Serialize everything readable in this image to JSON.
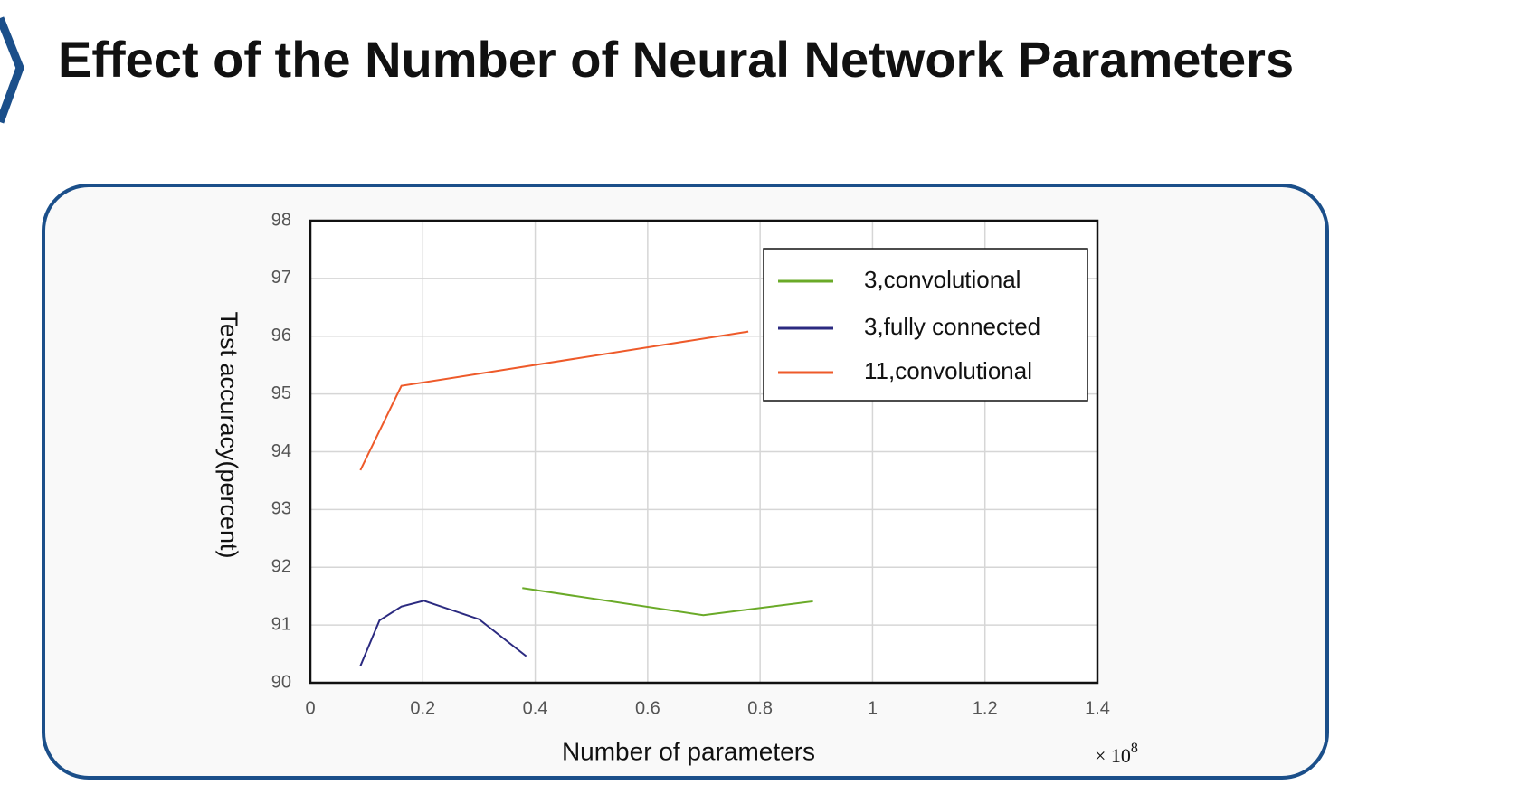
{
  "header": {
    "title": "Effect of the Number of Neural Network Parameters"
  },
  "chart_data": {
    "type": "line",
    "xlabel": "Number of parameters",
    "ylabel": "Test accuracy(percent)",
    "x_scale_label": "× 10",
    "x_scale_exponent": "8",
    "xlim": [
      0,
      1.4
    ],
    "xticks": [
      0,
      0.2,
      0.4,
      0.6,
      0.8,
      1,
      1.2,
      1.4
    ],
    "ylim": [
      90,
      98
    ],
    "yticks": [
      90,
      91,
      92,
      93,
      94,
      95,
      96,
      97,
      98
    ],
    "grid": true,
    "legend": "upper right",
    "series": [
      {
        "name": "3,convolutional",
        "color": "#6aaa28",
        "x": [
          0.377,
          0.699,
          0.894
        ],
        "values": [
          91.64,
          91.17,
          91.41
        ]
      },
      {
        "name": "3,fully connected",
        "color": "#2b2a80",
        "x": [
          0.089,
          0.123,
          0.162,
          0.202,
          0.3,
          0.384
        ],
        "values": [
          90.29,
          91.08,
          91.32,
          91.42,
          91.1,
          90.46
        ]
      },
      {
        "name": "11,convolutional",
        "color": "#ee5a2a",
        "x": [
          0.089,
          0.162,
          0.779
        ],
        "values": [
          93.68,
          95.14,
          96.08
        ]
      }
    ]
  }
}
